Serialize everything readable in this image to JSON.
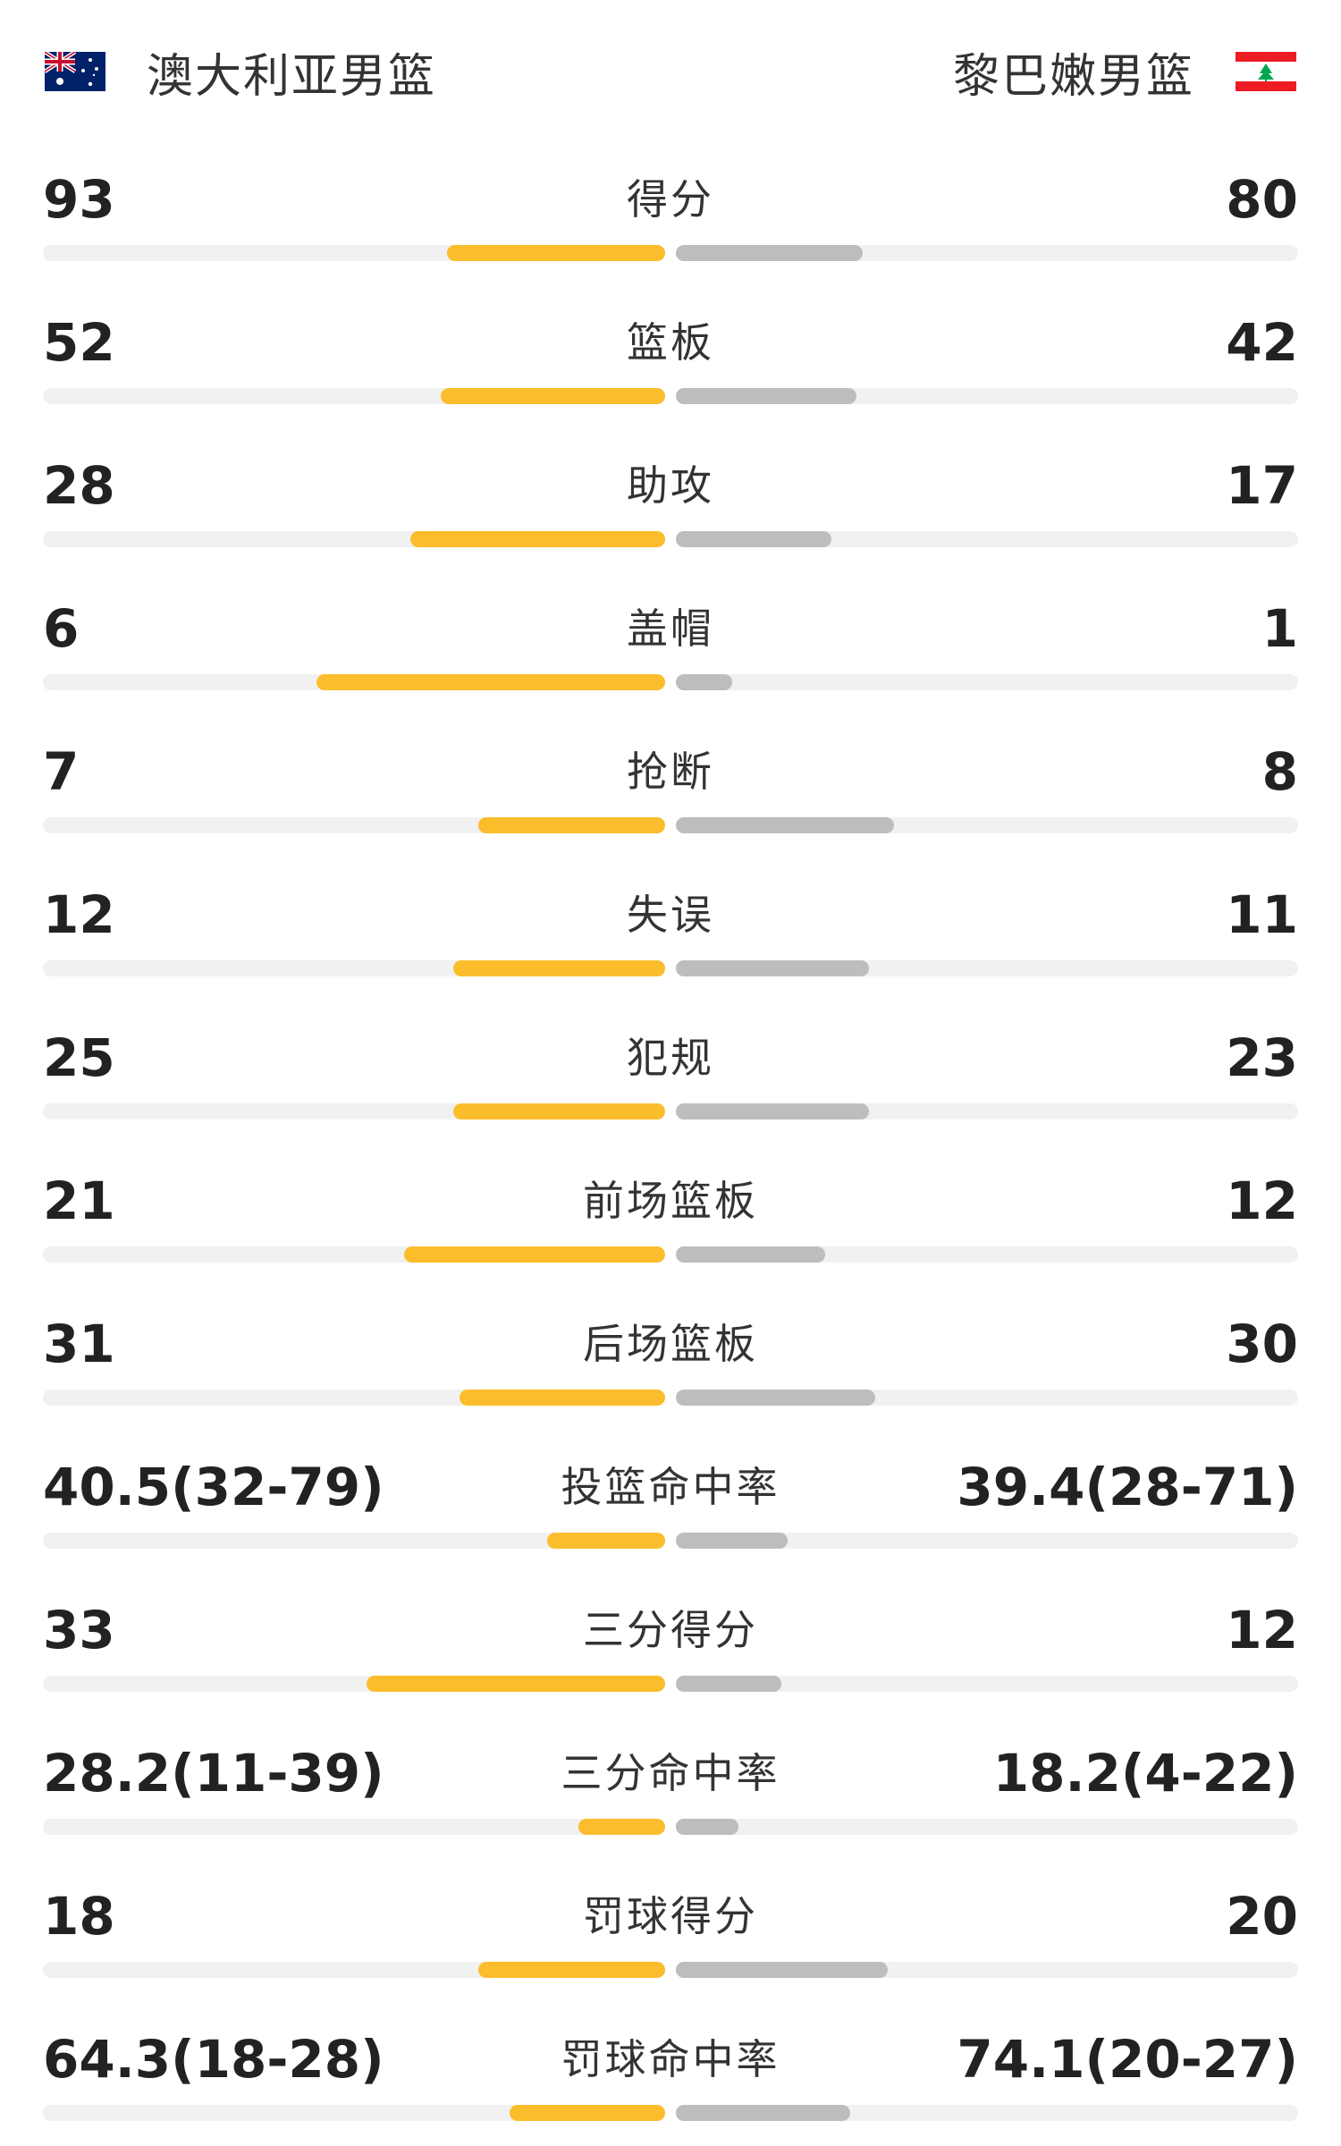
{
  "header": {
    "home_team": "澳大利亚男篮",
    "away_team": "黎巴嫩男篮",
    "home_flag": "australia-flag-icon",
    "away_flag": "lebanon-flag-icon"
  },
  "colors": {
    "home_bar": "#fbbd2c",
    "away_bar": "#bdbdbd",
    "track": "#f1f1f1"
  },
  "stats": [
    {
      "label": "得分",
      "home": "93",
      "away": "80",
      "home_fill": 0.35,
      "away_fill": 0.3
    },
    {
      "label": "篮板",
      "home": "52",
      "away": "42",
      "home_fill": 0.36,
      "away_fill": 0.29
    },
    {
      "label": "助攻",
      "home": "28",
      "away": "17",
      "home_fill": 0.41,
      "away_fill": 0.25
    },
    {
      "label": "盖帽",
      "home": "6",
      "away": "1",
      "home_fill": 0.56,
      "away_fill": 0.09
    },
    {
      "label": "抢断",
      "home": "7",
      "away": "8",
      "home_fill": 0.3,
      "away_fill": 0.35
    },
    {
      "label": "失误",
      "home": "12",
      "away": "11",
      "home_fill": 0.34,
      "away_fill": 0.31
    },
    {
      "label": "犯规",
      "home": "25",
      "away": "23",
      "home_fill": 0.34,
      "away_fill": 0.31
    },
    {
      "label": "前场篮板",
      "home": "21",
      "away": "12",
      "home_fill": 0.42,
      "away_fill": 0.24
    },
    {
      "label": "后场篮板",
      "home": "31",
      "away": "30",
      "home_fill": 0.33,
      "away_fill": 0.32
    },
    {
      "label": "投篮命中率",
      "home": "40.5(32-79)",
      "away": "39.4(28-71)",
      "home_fill": 0.19,
      "away_fill": 0.18
    },
    {
      "label": "三分得分",
      "home": "33",
      "away": "12",
      "home_fill": 0.48,
      "away_fill": 0.17
    },
    {
      "label": "三分命中率",
      "home": "28.2(11-39)",
      "away": "18.2(4-22)",
      "home_fill": 0.14,
      "away_fill": 0.1
    },
    {
      "label": "罚球得分",
      "home": "18",
      "away": "20",
      "home_fill": 0.3,
      "away_fill": 0.34
    },
    {
      "label": "罚球命中率",
      "home": "64.3(18-28)",
      "away": "74.1(20-27)",
      "home_fill": 0.25,
      "away_fill": 0.28
    }
  ]
}
